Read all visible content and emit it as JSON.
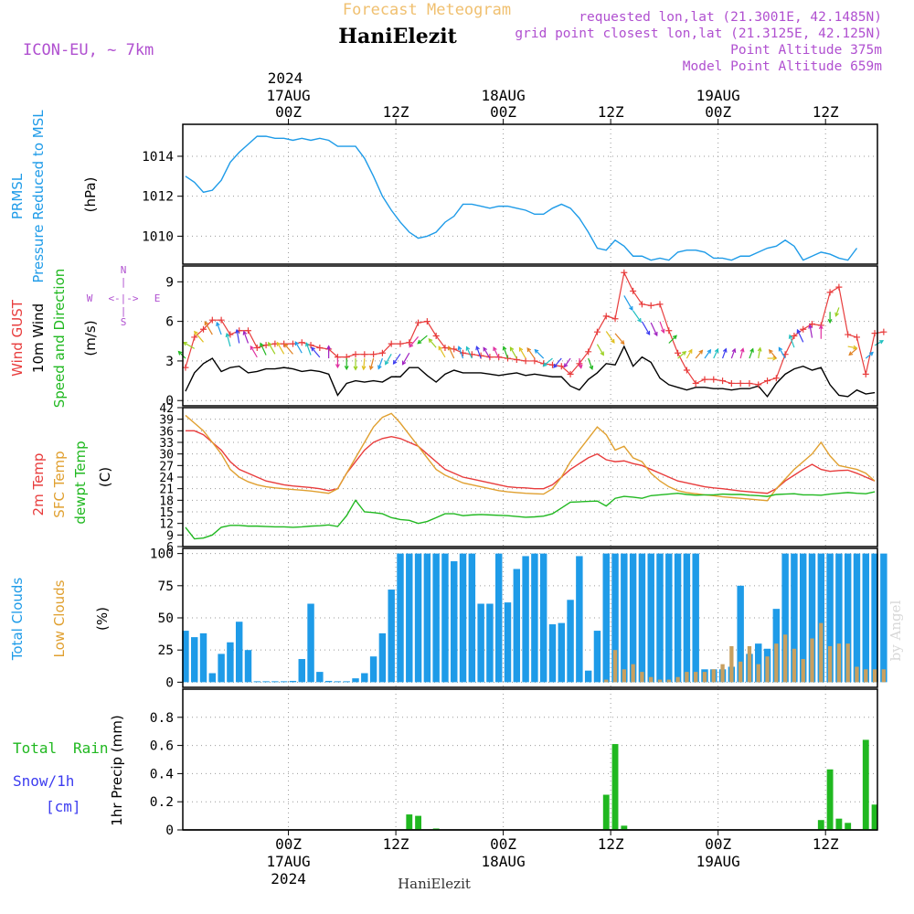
{
  "header": {
    "subtitle": "Forecast Meteogram",
    "location": "HaniElezit",
    "model": "ICON-EU, ~ 7km",
    "requested": "requested lon,lat (21.3001E, 42.1485N)",
    "grid_point": "grid point closest lon,lat (21.3125E, 42.125N)",
    "point_altitude": "Point Altitude 375m",
    "model_altitude": "Model Point Altitude 659m",
    "footer": "HaniElezit",
    "watermark": "by Angel",
    "year": "2024"
  },
  "time_axis": {
    "ticks": [
      {
        "t": 12,
        "label": "00Z",
        "date": "17AUG",
        "year": "2024"
      },
      {
        "t": 24,
        "label": "12Z"
      },
      {
        "t": 36,
        "label": "00Z",
        "date": "18AUG"
      },
      {
        "t": 48,
        "label": "12Z"
      },
      {
        "t": 60,
        "label": "00Z",
        "date": "19AUG"
      },
      {
        "t": 72,
        "label": "12Z"
      }
    ]
  },
  "chart_data": [
    {
      "panel": "pressure",
      "type": "line",
      "ylabel": [
        "PRMSL",
        "Pressure Reduced to MSL",
        "(hPa)"
      ],
      "ylim": [
        1008.6,
        1015.6
      ],
      "yticks": [
        1010,
        1012,
        1014
      ],
      "color": "#1e9be8",
      "x": [
        0,
        1,
        2,
        3,
        4,
        5,
        6,
        7,
        8,
        9,
        10,
        11,
        12,
        13,
        14,
        15,
        16,
        17,
        18,
        19,
        20,
        21,
        22,
        23,
        24,
        25,
        26,
        27,
        28,
        29,
        30,
        31,
        32,
        33,
        34,
        35,
        36,
        37,
        38,
        39,
        40,
        41,
        42,
        43,
        44,
        45,
        46,
        47,
        48,
        49,
        50,
        51,
        52,
        53,
        54,
        55,
        56,
        57,
        58,
        59,
        60,
        61,
        62,
        63,
        64,
        65,
        66,
        67,
        68,
        69,
        70,
        71,
        72,
        73,
        74,
        75
      ],
      "values": [
        1013.0,
        1012.7,
        1012.2,
        1012.3,
        1012.8,
        1013.7,
        1014.2,
        1014.6,
        1015.0,
        1015.0,
        1014.9,
        1014.9,
        1014.8,
        1014.9,
        1014.8,
        1014.9,
        1014.8,
        1014.5,
        1014.5,
        1014.5,
        1013.9,
        1013.0,
        1012.0,
        1011.3,
        1010.7,
        1010.2,
        1009.9,
        1010.0,
        1010.2,
        1010.7,
        1011.0,
        1011.6,
        1011.6,
        1011.5,
        1011.4,
        1011.5,
        1011.5,
        1011.4,
        1011.3,
        1011.1,
        1011.1,
        1011.4,
        1011.6,
        1011.4,
        1010.9,
        1010.2,
        1009.4,
        1009.3,
        1009.8,
        1009.5,
        1009.0,
        1009.0,
        1008.8,
        1008.9,
        1008.8,
        1009.2,
        1009.3,
        1009.3,
        1009.2,
        1008.9,
        1008.9,
        1008.8,
        1009.0,
        1009.0,
        1009.2,
        1009.4,
        1009.5,
        1009.8,
        1009.5,
        1008.8,
        1009.0,
        1009.2,
        1009.1,
        1008.9,
        1008.8,
        1009.4
      ]
    },
    {
      "panel": "wind",
      "type": "line",
      "ylabel": [
        "Wind GUST",
        "10m Wind",
        "Speed and Direction",
        "(m/s)"
      ],
      "compass": [
        "N",
        "W",
        "E",
        "S"
      ],
      "ylim": [
        -0.4,
        10.2
      ],
      "yticks": [
        0,
        3,
        6,
        9
      ],
      "gust_color": "#e83c3c",
      "wind_color": "#000000",
      "gust": [
        2.5,
        4.8,
        5.4,
        6.1,
        6.1,
        5.0,
        5.3,
        5.3,
        4.0,
        4.2,
        4.3,
        4.3,
        4.3,
        4.4,
        4.2,
        4.0,
        3.9,
        3.3,
        3.3,
        3.5,
        3.5,
        3.5,
        3.6,
        4.3,
        4.3,
        4.4,
        5.9,
        6.0,
        4.9,
        4.0,
        3.9,
        3.6,
        3.5,
        3.4,
        3.3,
        3.3,
        3.2,
        3.1,
        3.0,
        3.0,
        2.8,
        2.7,
        2.6,
        2.0,
        2.8,
        3.7,
        5.2,
        6.4,
        6.2,
        9.7,
        8.3,
        7.3,
        7.2,
        7.3,
        5.3,
        3.6,
        2.3,
        1.3,
        1.6,
        1.6,
        1.5,
        1.3,
        1.3,
        1.3,
        1.2,
        1.5,
        1.7,
        3.5,
        4.9,
        5.4,
        5.8,
        5.7,
        8.2,
        8.6,
        5.0,
        4.8,
        2.0,
        5.1,
        5.2
      ],
      "wind": [
        0.7,
        2.1,
        2.8,
        3.2,
        2.2,
        2.5,
        2.6,
        2.1,
        2.2,
        2.4,
        2.4,
        2.5,
        2.4,
        2.2,
        2.3,
        2.2,
        2.0,
        0.4,
        1.3,
        1.5,
        1.4,
        1.5,
        1.4,
        1.8,
        1.8,
        2.5,
        2.5,
        1.9,
        1.4,
        2.0,
        2.3,
        2.1,
        2.1,
        2.1,
        2.0,
        1.9,
        2.0,
        2.1,
        1.9,
        2.0,
        1.9,
        1.8,
        1.8,
        1.1,
        0.8,
        1.6,
        2.1,
        2.8,
        2.7,
        4.1,
        2.6,
        3.3,
        2.9,
        1.7,
        1.2,
        1.0,
        0.8,
        1.0,
        1.0,
        0.9,
        0.9,
        0.8,
        0.9,
        0.9,
        1.1,
        0.3,
        1.3,
        2.0,
        2.4,
        2.6,
        2.3,
        2.5,
        1.2,
        0.4,
        0.3,
        0.8,
        0.5,
        0.6
      ],
      "arrows": [
        {
          "t": 0,
          "dir": 315
        },
        {
          "t": 1,
          "dir": 300
        },
        {
          "t": 2,
          "dir": 320
        },
        {
          "t": 3,
          "dir": 330
        },
        {
          "t": 4,
          "dir": 340
        },
        {
          "t": 5,
          "dir": 345
        },
        {
          "t": 6,
          "dir": 350
        },
        {
          "t": 7,
          "dir": 340
        },
        {
          "t": 8,
          "dir": 330
        },
        {
          "t": 9,
          "dir": 335
        },
        {
          "t": 10,
          "dir": 330
        },
        {
          "t": 11,
          "dir": 330
        },
        {
          "t": 12,
          "dir": 320
        },
        {
          "t": 13,
          "dir": 330
        },
        {
          "t": 14,
          "dir": 340
        },
        {
          "t": 15,
          "dir": 320
        },
        {
          "t": 16,
          "dir": 0
        },
        {
          "t": 17,
          "dir": 180
        },
        {
          "t": 18,
          "dir": 180
        },
        {
          "t": 19,
          "dir": 180
        },
        {
          "t": 20,
          "dir": 185
        },
        {
          "t": 21,
          "dir": 195
        },
        {
          "t": 22,
          "dir": 200
        },
        {
          "t": 23,
          "dir": 210
        },
        {
          "t": 24,
          "dir": 215
        },
        {
          "t": 25,
          "dir": 210
        },
        {
          "t": 26,
          "dir": 220
        },
        {
          "t": 27,
          "dir": 230
        },
        {
          "t": 28,
          "dir": 320
        },
        {
          "t": 29,
          "dir": 330
        },
        {
          "t": 30,
          "dir": 335
        },
        {
          "t": 31,
          "dir": 340
        },
        {
          "t": 32,
          "dir": 335
        },
        {
          "t": 33,
          "dir": 340
        },
        {
          "t": 34,
          "dir": 330
        },
        {
          "t": 35,
          "dir": 335
        },
        {
          "t": 36,
          "dir": 340
        },
        {
          "t": 37,
          "dir": 330
        },
        {
          "t": 38,
          "dir": 330
        },
        {
          "t": 39,
          "dir": 325
        },
        {
          "t": 40,
          "dir": 315
        },
        {
          "t": 41,
          "dir": 230
        },
        {
          "t": 42,
          "dir": 220
        },
        {
          "t": 43,
          "dir": 215
        },
        {
          "t": 44,
          "dir": 170
        },
        {
          "t": 45,
          "dir": 160
        },
        {
          "t": 46,
          "dir": 150
        },
        {
          "t": 47,
          "dir": 145
        },
        {
          "t": 48,
          "dir": 140
        },
        {
          "t": 49,
          "dir": 150
        },
        {
          "t": 50,
          "dir": 145
        },
        {
          "t": 51,
          "dir": 150
        },
        {
          "t": 52,
          "dir": 155
        },
        {
          "t": 53,
          "dir": 160
        },
        {
          "t": 54,
          "dir": 45
        },
        {
          "t": 55,
          "dir": 50
        },
        {
          "t": 56,
          "dir": 30
        },
        {
          "t": 57,
          "dir": 40
        },
        {
          "t": 58,
          "dir": 35
        },
        {
          "t": 59,
          "dir": 25
        },
        {
          "t": 60,
          "dir": 20
        },
        {
          "t": 61,
          "dir": 20
        },
        {
          "t": 62,
          "dir": 15
        },
        {
          "t": 63,
          "dir": 20
        },
        {
          "t": 64,
          "dir": 10
        },
        {
          "t": 65,
          "dir": 90
        },
        {
          "t": 66,
          "dir": 320
        },
        {
          "t": 67,
          "dir": 330
        },
        {
          "t": 68,
          "dir": 340
        },
        {
          "t": 69,
          "dir": 335
        },
        {
          "t": 70,
          "dir": 350
        },
        {
          "t": 71,
          "dir": 0
        },
        {
          "t": 72,
          "dir": 180
        },
        {
          "t": 73,
          "dir": 200
        },
        {
          "t": 74,
          "dir": 100
        },
        {
          "t": 75,
          "dir": 230
        },
        {
          "t": 76,
          "dir": 50
        },
        {
          "t": 77,
          "dir": 60
        }
      ]
    },
    {
      "panel": "temperature",
      "type": "line",
      "ylabel": [
        "2m Temp",
        "SFC Temp",
        "dewpt Temp",
        "(C)"
      ],
      "ylim": [
        6,
        42
      ],
      "yticks": [
        6,
        9,
        12,
        15,
        18,
        21,
        24,
        27,
        30,
        33,
        36,
        39,
        42
      ],
      "series": [
        {
          "name": "2m Temp",
          "color": "#e83c3c",
          "values": [
            36,
            36,
            35,
            33,
            31,
            28,
            26,
            25,
            24,
            23,
            22.5,
            22,
            21.7,
            21.5,
            21.3,
            21,
            20.5,
            21,
            25,
            28,
            31,
            33,
            34,
            34.5,
            34,
            33,
            32,
            30,
            28,
            26,
            25,
            24,
            23.5,
            23,
            22.5,
            22,
            21.5,
            21.3,
            21.2,
            21,
            21,
            22,
            24,
            26,
            27.5,
            29,
            30,
            28.5,
            28,
            28.2,
            27.5,
            27,
            26,
            25,
            24,
            23,
            22.5,
            22,
            21.5,
            21.2,
            21,
            20.7,
            20.4,
            20.2,
            20,
            19.8,
            21,
            23,
            24.5,
            26,
            27.3,
            26,
            25.5,
            25.7,
            25.8,
            25,
            24,
            23
          ]
        },
        {
          "name": "SFC Temp",
          "color": "#e0a030",
          "values": [
            40,
            38,
            36,
            33,
            30,
            26,
            24,
            22.8,
            22,
            21.5,
            21.2,
            21,
            20.8,
            20.6,
            20.4,
            20.1,
            19.8,
            21,
            25,
            29,
            33,
            37,
            39.5,
            40.5,
            38,
            35,
            32,
            29,
            26,
            24.5,
            23.5,
            22.5,
            22,
            21.5,
            21,
            20.5,
            20.2,
            20,
            19.8,
            19.7,
            19.6,
            21,
            24,
            28,
            31,
            34,
            37,
            35,
            31,
            32,
            29,
            28,
            25,
            23,
            21.5,
            20.5,
            20,
            19.7,
            19.4,
            19.2,
            18.9,
            18.7,
            18.5,
            18.3,
            18.1,
            17.9,
            21,
            23.5,
            26,
            28,
            30,
            33,
            29.5,
            27,
            26.5,
            26,
            25,
            23
          ]
        },
        {
          "name": "dewpt Temp",
          "color": "#20b820",
          "values": [
            11,
            8,
            8.2,
            9,
            11,
            11.5,
            11.5,
            11.3,
            11.3,
            11.2,
            11.1,
            11.1,
            11,
            11.1,
            11.3,
            11.4,
            11.6,
            11.2,
            14,
            18,
            15,
            14.8,
            14.5,
            13.5,
            13,
            12.8,
            12,
            12.5,
            13.5,
            14.5,
            14.5,
            14,
            14.2,
            14.3,
            14.2,
            14.1,
            14,
            13.8,
            13.6,
            13.7,
            13.9,
            14.5,
            16,
            17.5,
            17.6,
            17.7,
            17.8,
            16.5,
            18.5,
            19,
            18.8,
            18.5,
            19.2,
            19.4,
            19.6,
            19.8,
            19.5,
            19.3,
            19.4,
            19.4,
            19.6,
            19.5,
            19.5,
            19.3,
            19.2,
            19,
            19.5,
            19.6,
            19.7,
            19.4,
            19.4,
            19.3,
            19.6,
            19.8,
            20,
            19.8,
            19.7,
            20.2
          ]
        }
      ]
    },
    {
      "panel": "clouds",
      "type": "bar",
      "ylabel": [
        "Total Clouds",
        "Low Clouds",
        "(%)"
      ],
      "ylim": [
        -4,
        104
      ],
      "yticks": [
        0,
        25,
        50,
        75,
        100
      ],
      "total_color": "#1e9be8",
      "low_color": "#c8a060",
      "total": [
        40,
        35,
        38,
        7,
        22,
        31,
        47,
        25,
        0,
        0,
        0,
        0,
        1,
        18,
        61,
        8,
        1,
        0,
        0,
        3,
        7,
        20,
        38,
        72,
        100,
        100,
        100,
        100,
        100,
        100,
        94,
        100,
        100,
        61,
        61,
        100,
        62,
        88,
        98,
        100,
        100,
        45,
        46,
        64,
        98,
        9,
        40,
        100,
        100,
        100,
        100,
        100,
        100,
        100,
        100,
        100,
        100,
        100,
        10,
        10,
        10,
        12,
        75,
        22,
        30,
        26,
        57,
        100,
        100,
        100,
        100,
        100,
        100,
        100,
        100,
        100,
        100,
        100,
        100
      ],
      "low": [
        0,
        0,
        0,
        0,
        0,
        0,
        0,
        0,
        0,
        0,
        0,
        0,
        0,
        0,
        0,
        0,
        0,
        0,
        0,
        0,
        0,
        0,
        0,
        0,
        0,
        0,
        0,
        0,
        0,
        0,
        0,
        0,
        0,
        0,
        0,
        0,
        0,
        0,
        0,
        0,
        0,
        0,
        0,
        0,
        0,
        0,
        0,
        2,
        25,
        10,
        14,
        8,
        4,
        2,
        2,
        4,
        8,
        8,
        8,
        10,
        14,
        28,
        16,
        28,
        14,
        20,
        30,
        37,
        26,
        18,
        34,
        46,
        28,
        30,
        30,
        12,
        10,
        10,
        10
      ]
    },
    {
      "panel": "precip",
      "type": "bar",
      "ylabel": [
        "1hr Precip (mm)"
      ],
      "legend": [
        "Total",
        "Rain",
        "Snow/1h",
        "[cm]"
      ],
      "ylim": [
        0,
        1.0
      ],
      "yticks": [
        0,
        0.2,
        0.4,
        0.6,
        0.8
      ],
      "color": "#20b820",
      "values": [
        0,
        0,
        0,
        0,
        0,
        0,
        0,
        0,
        0,
        0,
        0,
        0,
        0,
        0,
        0,
        0,
        0,
        0,
        0,
        0,
        0,
        0,
        0,
        0,
        0,
        0.11,
        0.1,
        0,
        0.01,
        0,
        0,
        0,
        0,
        0,
        0,
        0,
        0,
        0,
        0,
        0,
        0,
        0,
        0,
        0,
        0,
        0,
        0,
        0.25,
        0.61,
        0.03,
        0,
        0,
        0,
        0,
        0,
        0,
        0,
        0,
        0,
        0,
        0,
        0,
        0,
        0,
        0,
        0,
        0,
        0,
        0,
        0,
        0,
        0.07,
        0.43,
        0.08,
        0.05,
        0,
        0.64,
        0.18
      ]
    }
  ]
}
